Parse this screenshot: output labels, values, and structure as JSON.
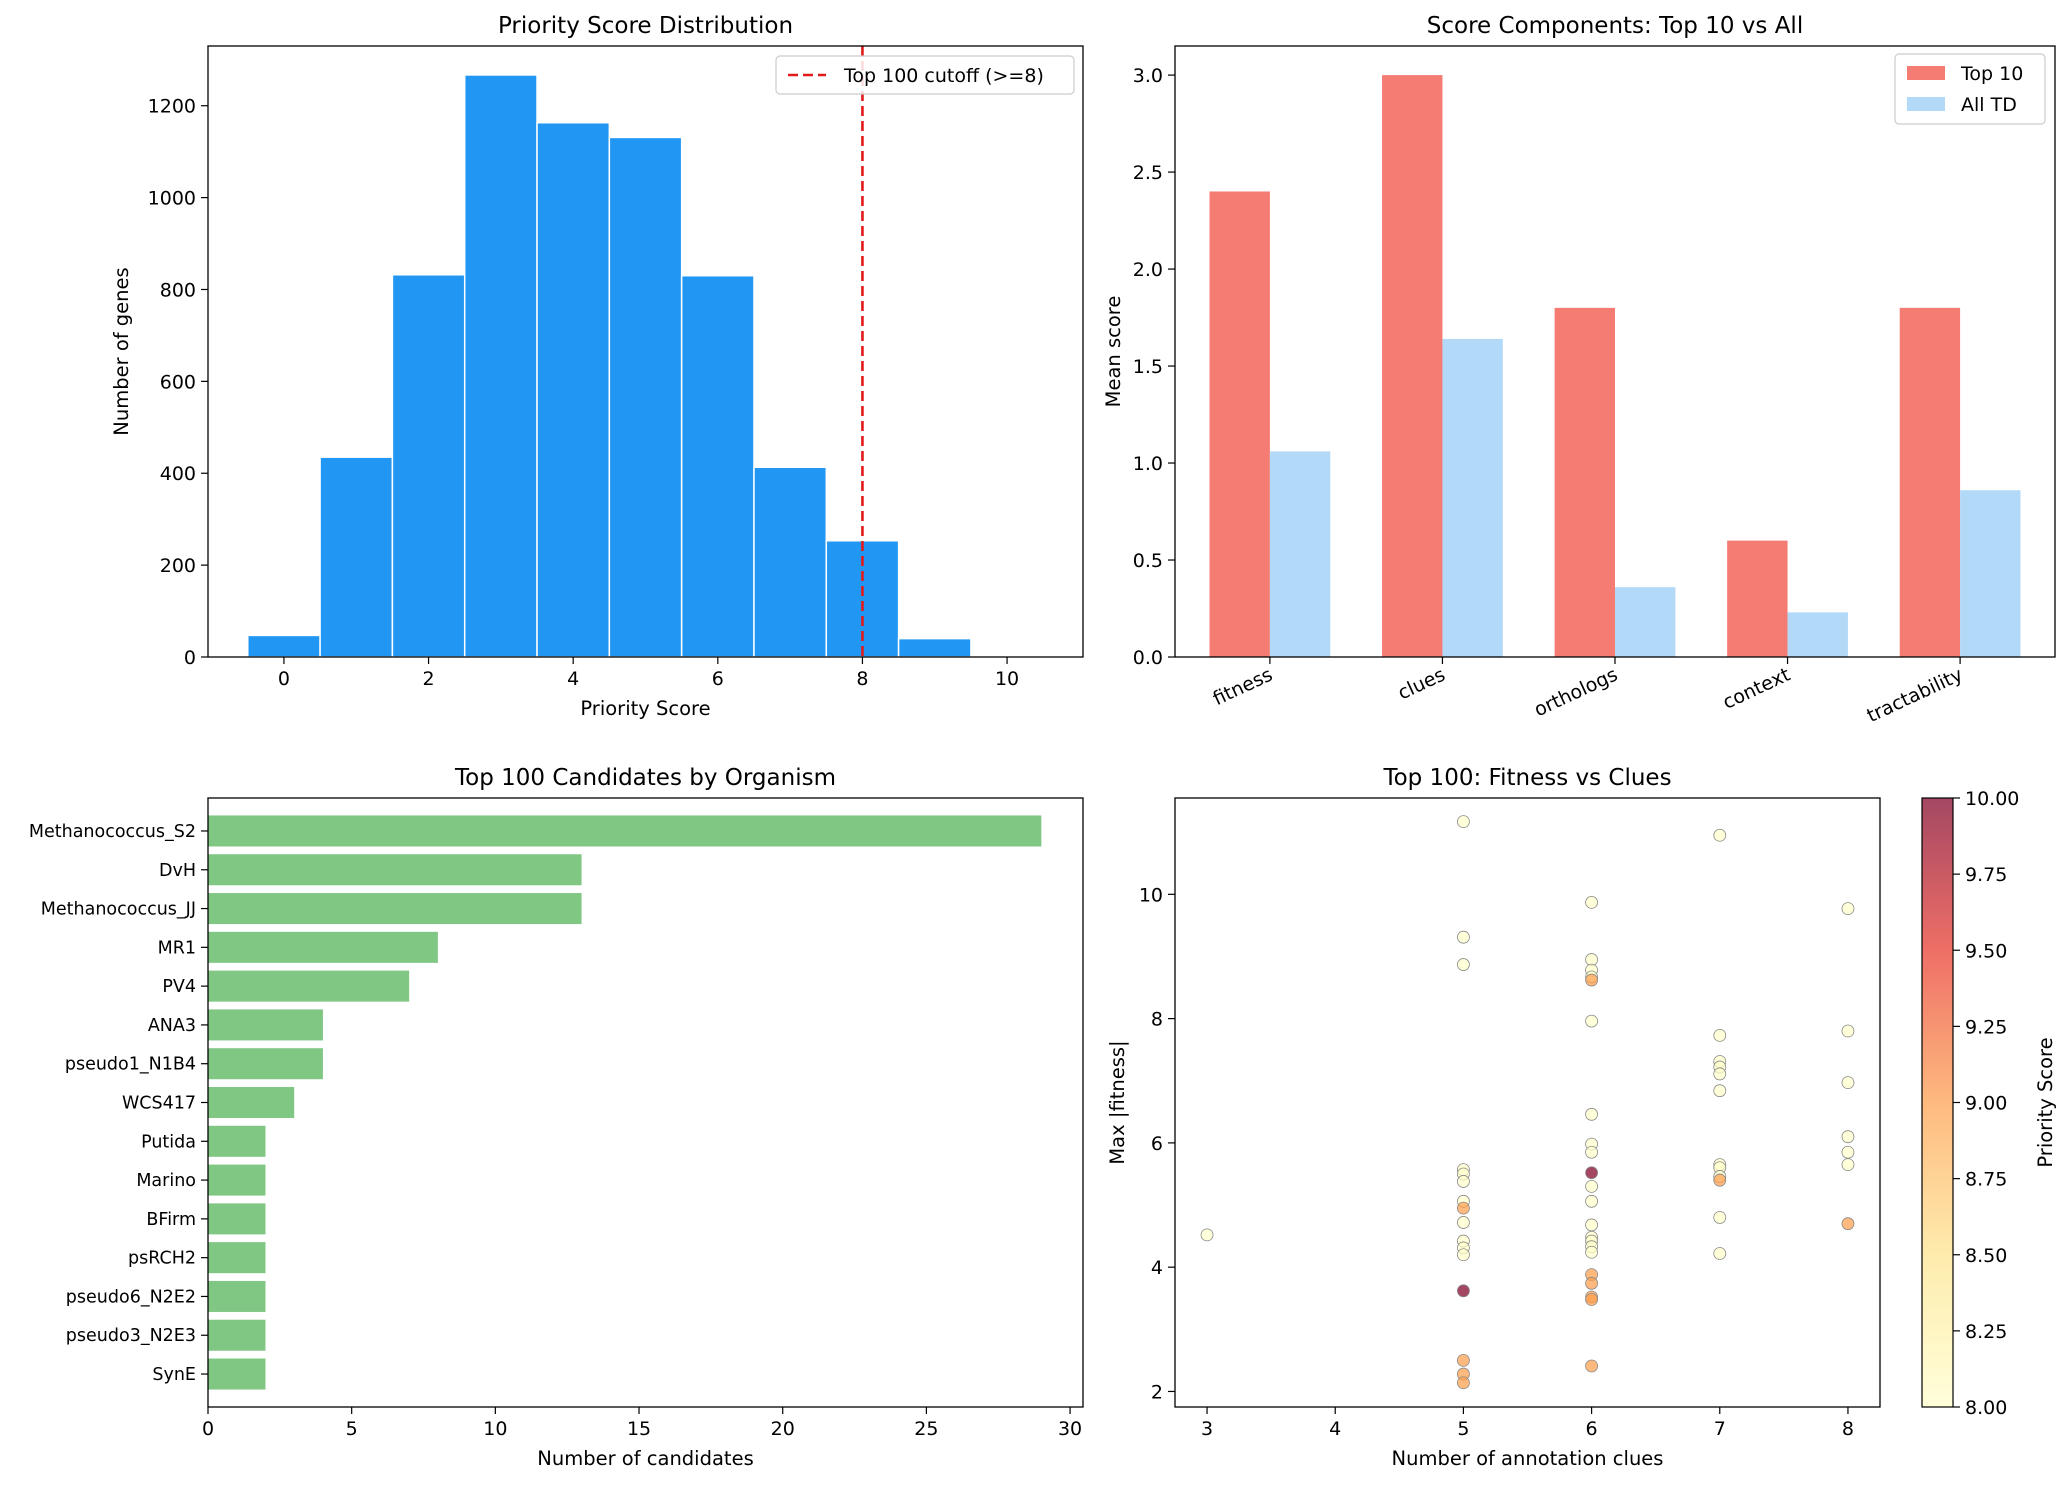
{
  "chart_data": [
    {
      "type": "bar",
      "subtype": "histogram",
      "title": "Priority Score Distribution",
      "xlabel": "Priority Score",
      "ylabel": "Number of genes",
      "bin_centers": [
        0,
        1,
        2,
        3,
        4,
        5,
        6,
        7,
        8,
        9,
        10
      ],
      "values": [
        47,
        435,
        832,
        1267,
        1163,
        1131,
        830,
        413,
        253,
        40,
        3
      ],
      "color": "#2196F3",
      "xlim": [
        -1.05,
        11.05
      ],
      "ylim": [
        0,
        1330
      ],
      "xticks": [
        "0",
        "2",
        "4",
        "6",
        "8",
        "10"
      ],
      "yticks": [
        "0",
        "200",
        "400",
        "600",
        "800",
        "1000",
        "1200"
      ],
      "cutoff": {
        "x": 8,
        "label": "Top 100 cutoff (>=8)",
        "color": "#e31a1c"
      },
      "legend_position": "top-right"
    },
    {
      "type": "bar",
      "title": "Score Components: Top 10 vs All",
      "ylabel": "Mean score",
      "categories": [
        "fitness",
        "clues",
        "orthologs",
        "context",
        "tractability"
      ],
      "series": [
        {
          "name": "Top 10",
          "values": [
            2.4,
            3.0,
            1.8,
            0.6,
            1.8
          ],
          "color": "#F47C73"
        },
        {
          "name": "All TD",
          "values": [
            1.06,
            1.64,
            0.36,
            0.23,
            0.86
          ],
          "color": "#B3D9F8"
        }
      ],
      "ylim": [
        0,
        3.15
      ],
      "yticks": [
        "0.0",
        "0.5",
        "1.0",
        "1.5",
        "2.0",
        "2.5",
        "3.0"
      ],
      "legend_position": "top-right"
    },
    {
      "type": "bar",
      "orientation": "horizontal",
      "title": "Top 100 Candidates by Organism",
      "xlabel": "Number of candidates",
      "categories": [
        "Methanococcus_S2",
        "DvH",
        "Methanococcus_JJ",
        "MR1",
        "PV4",
        "ANA3",
        "pseudo1_N1B4",
        "WCS417",
        "Putida",
        "Marino",
        "BFirm",
        "psRCH2",
        "pseudo6_N2E2",
        "pseudo3_N2E3",
        "SynE"
      ],
      "values": [
        29,
        13,
        13,
        8,
        7,
        4,
        4,
        3,
        2,
        2,
        2,
        2,
        2,
        2,
        2
      ],
      "color": "#81C784",
      "xlim": [
        0,
        30.45
      ],
      "xticks": [
        "0",
        "5",
        "10",
        "15",
        "20",
        "25",
        "30"
      ]
    },
    {
      "type": "scatter",
      "title": "Top 100: Fitness vs Clues",
      "xlabel": "Number of annotation clues",
      "ylabel": "Max |fitness|",
      "xlim": [
        2.75,
        8.25
      ],
      "ylim": [
        1.75,
        11.55
      ],
      "xticks": [
        "3",
        "4",
        "5",
        "6",
        "7",
        "8"
      ],
      "yticks": [
        "2",
        "4",
        "6",
        "8",
        "10"
      ],
      "colorbar": {
        "label": "Priority Score",
        "min": 8.0,
        "max": 10.0,
        "ticks": [
          "8.00",
          "8.25",
          "8.50",
          "8.75",
          "9.00",
          "9.25",
          "9.50",
          "9.75",
          "10.00"
        ],
        "colormap": "YlOrRd"
      },
      "points": [
        {
          "x": 3,
          "y": 4.52,
          "score": 8
        },
        {
          "x": 5,
          "y": 11.17,
          "score": 8
        },
        {
          "x": 5,
          "y": 9.31,
          "score": 8
        },
        {
          "x": 5,
          "y": 8.87,
          "score": 8
        },
        {
          "x": 5,
          "y": 5.57,
          "score": 8
        },
        {
          "x": 5,
          "y": 5.5,
          "score": 8
        },
        {
          "x": 5,
          "y": 5.38,
          "score": 8
        },
        {
          "x": 5,
          "y": 5.06,
          "score": 8
        },
        {
          "x": 5,
          "y": 4.95,
          "score": 9
        },
        {
          "x": 5,
          "y": 4.72,
          "score": 8
        },
        {
          "x": 5,
          "y": 4.42,
          "score": 8
        },
        {
          "x": 5,
          "y": 4.31,
          "score": 8
        },
        {
          "x": 5,
          "y": 4.2,
          "score": 8
        },
        {
          "x": 5,
          "y": 3.62,
          "score": 10
        },
        {
          "x": 5,
          "y": 2.5,
          "score": 9
        },
        {
          "x": 5,
          "y": 2.28,
          "score": 9
        },
        {
          "x": 5,
          "y": 2.14,
          "score": 9
        },
        {
          "x": 6,
          "y": 9.87,
          "score": 8
        },
        {
          "x": 6,
          "y": 8.95,
          "score": 8
        },
        {
          "x": 6,
          "y": 8.78,
          "score": 8
        },
        {
          "x": 6,
          "y": 8.67,
          "score": 8
        },
        {
          "x": 6,
          "y": 8.62,
          "score": 9
        },
        {
          "x": 6,
          "y": 7.96,
          "score": 8
        },
        {
          "x": 6,
          "y": 6.46,
          "score": 8
        },
        {
          "x": 6,
          "y": 5.98,
          "score": 8
        },
        {
          "x": 6,
          "y": 5.85,
          "score": 8
        },
        {
          "x": 6,
          "y": 5.52,
          "score": 10
        },
        {
          "x": 6,
          "y": 5.3,
          "score": 8
        },
        {
          "x": 6,
          "y": 5.06,
          "score": 8
        },
        {
          "x": 6,
          "y": 4.68,
          "score": 8
        },
        {
          "x": 6,
          "y": 4.48,
          "score": 8
        },
        {
          "x": 6,
          "y": 4.42,
          "score": 8
        },
        {
          "x": 6,
          "y": 4.33,
          "score": 8
        },
        {
          "x": 6,
          "y": 4.24,
          "score": 8
        },
        {
          "x": 6,
          "y": 3.88,
          "score": 9
        },
        {
          "x": 6,
          "y": 3.74,
          "score": 9
        },
        {
          "x": 6,
          "y": 3.52,
          "score": 9
        },
        {
          "x": 6,
          "y": 3.48,
          "score": 9
        },
        {
          "x": 6,
          "y": 2.41,
          "score": 9
        },
        {
          "x": 7,
          "y": 10.95,
          "score": 8
        },
        {
          "x": 7,
          "y": 7.73,
          "score": 8
        },
        {
          "x": 7,
          "y": 7.31,
          "score": 8
        },
        {
          "x": 7,
          "y": 7.22,
          "score": 8
        },
        {
          "x": 7,
          "y": 7.11,
          "score": 8
        },
        {
          "x": 7,
          "y": 6.84,
          "score": 8
        },
        {
          "x": 7,
          "y": 5.65,
          "score": 8
        },
        {
          "x": 7,
          "y": 5.6,
          "score": 8
        },
        {
          "x": 7,
          "y": 5.46,
          "score": 8
        },
        {
          "x": 7,
          "y": 5.4,
          "score": 9
        },
        {
          "x": 7,
          "y": 4.8,
          "score": 8
        },
        {
          "x": 7,
          "y": 4.22,
          "score": 8
        },
        {
          "x": 8,
          "y": 9.77,
          "score": 8
        },
        {
          "x": 8,
          "y": 7.8,
          "score": 8
        },
        {
          "x": 8,
          "y": 6.97,
          "score": 8
        },
        {
          "x": 8,
          "y": 6.1,
          "score": 8
        },
        {
          "x": 8,
          "y": 5.85,
          "score": 8
        },
        {
          "x": 8,
          "y": 5.65,
          "score": 8
        },
        {
          "x": 8,
          "y": 4.7,
          "score": 9
        }
      ]
    }
  ]
}
